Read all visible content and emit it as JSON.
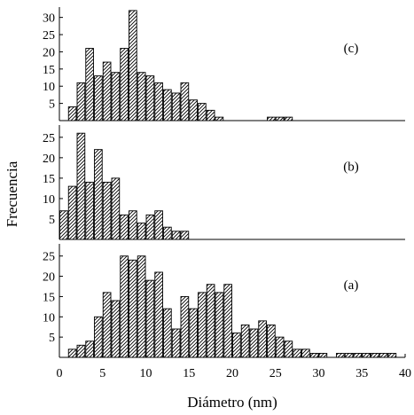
{
  "chart_data": {
    "type": "bar",
    "xlabel": "Diámetro (nm)",
    "ylabel": "Frecuencia",
    "xlim": [
      0,
      40
    ],
    "xticks": [
      0,
      5,
      10,
      15,
      20,
      25,
      30,
      35,
      40
    ],
    "bin_width": 1,
    "bar_fill": "hatched",
    "panels": [
      {
        "label": "(c)",
        "ylim": [
          0,
          33
        ],
        "yticks": [
          5,
          10,
          15,
          20,
          25,
          30
        ],
        "x": [
          1.5,
          2.5,
          3.5,
          4.5,
          5.5,
          6.5,
          7.5,
          8.5,
          9.5,
          10.5,
          11.5,
          12.5,
          13.5,
          14.5,
          15.5,
          16.5,
          17.5,
          18.5,
          24.5,
          25.5,
          26.5
        ],
        "values": [
          4,
          11,
          21,
          13,
          17,
          14,
          21,
          32,
          14,
          13,
          11,
          9,
          8,
          11,
          6,
          5,
          3,
          1,
          1,
          1,
          1
        ]
      },
      {
        "label": "(b)",
        "ylim": [
          0,
          28
        ],
        "yticks": [
          5,
          10,
          15,
          20,
          25
        ],
        "x": [
          0.5,
          1.5,
          2.5,
          3.5,
          4.5,
          5.5,
          6.5,
          7.5,
          8.5,
          9.5,
          10.5,
          11.5,
          12.5,
          13.5,
          14.5
        ],
        "values": [
          7,
          13,
          26,
          14,
          22,
          14,
          15,
          6,
          7,
          4,
          6,
          7,
          3,
          2,
          2
        ]
      },
      {
        "label": "(a)",
        "ylim": [
          0,
          28
        ],
        "yticks": [
          5,
          10,
          15,
          20,
          25
        ],
        "x": [
          1.5,
          2.5,
          3.5,
          4.5,
          5.5,
          6.5,
          7.5,
          8.5,
          9.5,
          10.5,
          11.5,
          12.5,
          13.5,
          14.5,
          15.5,
          16.5,
          17.5,
          18.5,
          19.5,
          20.5,
          21.5,
          22.5,
          23.5,
          24.5,
          25.5,
          26.5,
          27.5,
          28.5,
          29.5,
          30.5,
          32.5,
          33.5,
          34.5,
          35.5,
          36.5,
          37.5,
          38.5
        ],
        "values": [
          2,
          3,
          4,
          10,
          16,
          14,
          25,
          24,
          25,
          19,
          21,
          12,
          7,
          15,
          12,
          16,
          18,
          16,
          18,
          6,
          8,
          7,
          9,
          8,
          5,
          4,
          2,
          2,
          1,
          1,
          1,
          1,
          1,
          1,
          1,
          1,
          1
        ]
      }
    ]
  }
}
